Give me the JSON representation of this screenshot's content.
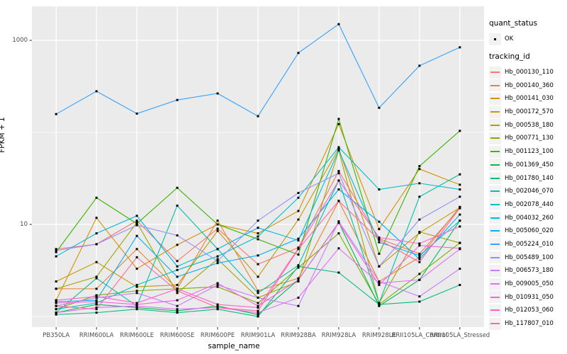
{
  "figure": {
    "background": "#FFFFFF",
    "panel_background": "#EBEBEB",
    "grid_color": "#FFFFFF",
    "tick_color": "#333333",
    "axis_text_color": "#4D4D4D",
    "point_color": "#000000"
  },
  "legend": {
    "quant_title": "quant_status",
    "quant_items": [
      {
        "label": "OK"
      }
    ],
    "tracking_title": "tracking_id"
  },
  "chart_data": {
    "type": "line",
    "title": "",
    "xlabel": "sample_name",
    "ylabel": "FPKM + 1",
    "y_scale": "log10",
    "ylim": [
      0.7,
      2200
    ],
    "grid": true,
    "legend_position": "right",
    "y_ticks": [
      {
        "value": 10,
        "label": "10"
      },
      {
        "value": 1000,
        "label": "1000"
      }
    ],
    "y_gridlines": [
      1,
      10,
      100,
      1000
    ],
    "categories": [
      "PB350LA",
      "RRIM600LA",
      "RRIM600LE",
      "RRIM600SE",
      "RRIM600PE",
      "RRIM901LA",
      "RRIM928BA",
      "RRIM928LA",
      "RRIM928LE",
      "RRII105LA_Control",
      "RRII105LA_Stressed"
    ],
    "quant_status": "OK",
    "series": [
      {
        "name": "Hb_000130_110",
        "color": "#F8766D",
        "values": [
          5.4,
          6.1,
          11,
          4.0,
          9.0,
          3.7,
          5.6,
          38,
          7.0,
          4.8,
          15.0
        ]
      },
      {
        "name": "Hb_000140_360",
        "color": "#EA8331",
        "values": [
          2.0,
          2.0,
          5.4,
          2.0,
          11.0,
          1.9,
          2.6,
          18,
          2.4,
          4.4,
          15.5
        ]
      },
      {
        "name": "Hb_000141_030",
        "color": "#D89000",
        "values": [
          1.5,
          11.8,
          3.3,
          6.0,
          10.0,
          8.0,
          14,
          123,
          8.9,
          40,
          27
        ]
      },
      {
        "name": "Hb_000172_570",
        "color": "#C49A00",
        "values": [
          2.4,
          3.9,
          2.1,
          2.2,
          8.5,
          2.7,
          11.3,
          67,
          3.5,
          8.1,
          15.2
        ]
      },
      {
        "name": "Hb_000538_180",
        "color": "#A3A500",
        "values": [
          2.0,
          2.7,
          10.5,
          1.8,
          4.2,
          1.6,
          2.4,
          64,
          1.4,
          8.3,
          6.3
        ]
      },
      {
        "name": "Hb_000771_130",
        "color": "#7CAE00",
        "values": [
          1.2,
          1.7,
          1.9,
          2.0,
          2.1,
          1.4,
          3.4,
          8.0,
          1.35,
          2.9,
          6.3
        ]
      },
      {
        "name": "Hb_001123_100",
        "color": "#39B600",
        "values": [
          5.0,
          19.5,
          10.2,
          25,
          10.0,
          6.9,
          4.7,
          140,
          4.8,
          43,
          104
        ]
      },
      {
        "name": "Hb_001369_450",
        "color": "#00BB4E",
        "values": [
          1.1,
          1.35,
          1.25,
          1.15,
          1.3,
          1.05,
          2.5,
          10.5,
          1.3,
          2.5,
          11
        ]
      },
      {
        "name": "Hb_001780_140",
        "color": "#00BF7D",
        "values": [
          1.05,
          1.1,
          1.2,
          1.1,
          1.2,
          1.0,
          3.5,
          3.0,
          1.35,
          1.45,
          2.2
        ]
      },
      {
        "name": "Hb_002046_070",
        "color": "#00C1A3",
        "values": [
          1.1,
          2.6,
          1.3,
          16,
          5.4,
          1.8,
          3.6,
          30,
          1.4,
          20,
          35
        ]
      },
      {
        "name": "Hb_002078_440",
        "color": "#00BFC4",
        "values": [
          1.2,
          1.4,
          2.2,
          3.2,
          4.5,
          7.4,
          19.5,
          69,
          24,
          28,
          24
        ]
      },
      {
        "name": "Hb_004032_260",
        "color": "#00BAE0",
        "values": [
          4.5,
          8.0,
          12.4,
          3.5,
          5.4,
          9.2,
          6.7,
          64,
          6.4,
          4.6,
          11
        ]
      },
      {
        "name": "Hb_005060_020",
        "color": "#00B0F6",
        "values": [
          1.45,
          1.5,
          7.5,
          2.7,
          3.8,
          4.6,
          7.0,
          24,
          10.7,
          4.2,
          12.8
        ]
      },
      {
        "name": "Hb_005224_010",
        "color": "#35A2FF",
        "values": [
          158,
          280,
          160,
          225,
          265,
          150,
          730,
          1500,
          185,
          530,
          840
        ]
      },
      {
        "name": "Hb_005489_100",
        "color": "#9590FF",
        "values": [
          5.2,
          6.1,
          9.8,
          7.6,
          4.0,
          11,
          22,
          36,
          3.5,
          11.3,
          20
        ]
      },
      {
        "name": "Hb_006573_180",
        "color": "#C77CFF",
        "values": [
          1.3,
          1.6,
          1.8,
          1.3,
          2.2,
          1.6,
          1.3,
          10.8,
          2.4,
          1.65,
          3.3
        ]
      },
      {
        "name": "Hb_009005_050",
        "color": "#E36EF6",
        "values": [
          1.1,
          1.25,
          1.3,
          1.2,
          1.25,
          1.1,
          1.6,
          5.5,
          2.3,
          2.5,
          5.4
        ]
      },
      {
        "name": "Hb_010931_050",
        "color": "#F763E0",
        "values": [
          1.4,
          1.45,
          1.35,
          1.5,
          2.3,
          1.3,
          2.5,
          10.4,
          2.2,
          5.9,
          5.5
        ]
      },
      {
        "name": "Hb_012053_060",
        "color": "#FF61C7",
        "values": [
          1.5,
          1.65,
          1.4,
          2.0,
          1.35,
          1.25,
          5.5,
          30,
          7.2,
          6.2,
          9.5
        ]
      },
      {
        "name": "Hb_117807_010",
        "color": "#FF68A1",
        "values": [
          1.3,
          1.2,
          4.4,
          1.9,
          1.25,
          1.15,
          5.4,
          18,
          6.8,
          3.9,
          15.1
        ]
      }
    ]
  }
}
